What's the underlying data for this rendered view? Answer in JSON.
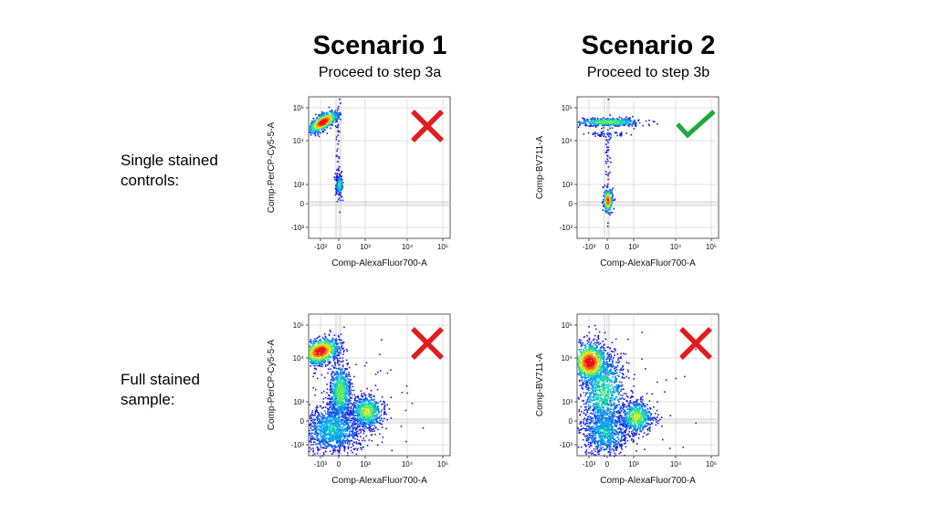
{
  "scenarios": [
    {
      "title": "Scenario 1",
      "subtitle": "Proceed to step 3a"
    },
    {
      "title": "Scenario 2",
      "subtitle": "Proceed to step 3b"
    }
  ],
  "row_labels": {
    "single_line1": "Single stained",
    "single_line2": "controls:",
    "full_line1": "Full stained",
    "full_line2": "sample:"
  },
  "marks": {
    "cross_color": "#e11d1d",
    "check_color": "#1faa3c",
    "cross_icon": "cross-icon",
    "check_icon": "checkmark-icon"
  },
  "axis": {
    "x_ticks": [
      "-10³",
      "0",
      "10³",
      "10⁴",
      "10⁵"
    ],
    "y_ticks": [
      "10⁵",
      "10⁴",
      "10³",
      "0",
      "-10³"
    ]
  },
  "chart_data": [
    {
      "type": "scatter",
      "id": "s1-single",
      "xlabel": "Comp-AlexaFluor700-A",
      "ylabel": "Comp-PerCP-Cy5-5-A",
      "scale": "biexponential",
      "mark": "cross",
      "populations": [
        {
          "x": -1000,
          "y": 15000,
          "note": "diagonal smear"
        },
        {
          "x": -100,
          "y": 500
        }
      ]
    },
    {
      "type": "scatter",
      "id": "s2-single",
      "xlabel": "Comp-AlexaFluor700-A",
      "ylabel": "Comp-BV711-A",
      "scale": "biexponential",
      "mark": "check",
      "populations": [
        {
          "x": -100,
          "y": 30000
        },
        {
          "x": -100,
          "y": 0
        }
      ]
    },
    {
      "type": "scatter",
      "id": "s1-full",
      "xlabel": "Comp-AlexaFluor700-A",
      "ylabel": "Comp-PerCP-Cy5-5-A",
      "scale": "biexponential",
      "mark": "cross",
      "populations": [
        {
          "x": -1500,
          "y": 20000
        },
        {
          "x": -200,
          "y": 1000
        },
        {
          "x": 500,
          "y": 200
        },
        {
          "x": -800,
          "y": -100
        }
      ]
    },
    {
      "type": "scatter",
      "id": "s2-full",
      "xlabel": "Comp-AlexaFluor700-A",
      "ylabel": "Comp-BV711-A",
      "scale": "biexponential",
      "mark": "cross",
      "populations": [
        {
          "x": -1000,
          "y": 10000
        },
        {
          "x": -300,
          "y": 300
        },
        {
          "x": 500,
          "y": 100
        },
        {
          "x": -700,
          "y": -300
        }
      ]
    }
  ]
}
